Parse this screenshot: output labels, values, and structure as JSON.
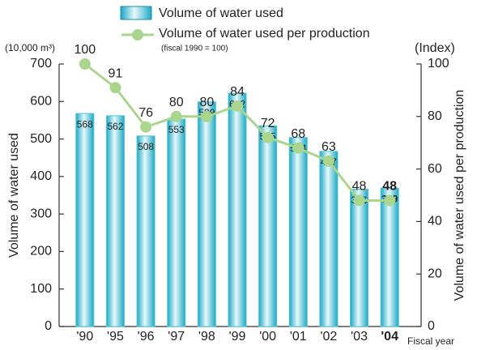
{
  "chart_data": {
    "type": "bar",
    "categories": [
      "'90",
      "'95",
      "'96",
      "'97",
      "'98",
      "'99",
      "'00",
      "'01",
      "'02",
      "'03",
      "'04"
    ],
    "series": [
      {
        "name": "Volume of water used",
        "type": "bar",
        "color": "#4cc3d9",
        "values": [
          568,
          562,
          508,
          553,
          599,
          622,
          535,
          504,
          467,
          366,
          369
        ]
      },
      {
        "name": "Volume of water used per production",
        "type": "line",
        "axis": "y2",
        "color": "#a9d68c",
        "values": [
          100,
          91,
          76,
          80,
          80,
          84,
          72,
          68,
          63,
          48,
          48
        ]
      }
    ],
    "annotation": "(fiscal 1990 = 100)",
    "ylabel": "Volume of water used",
    "yunit": "(10,000 m³)",
    "y2label": "Volume of water used per production",
    "y2unit": "(Index)",
    "xlabel": "Fiscal year",
    "ylim": [
      0,
      700
    ],
    "yticks": [
      0,
      100,
      200,
      300,
      400,
      500,
      600,
      700
    ],
    "y2lim": [
      0,
      100
    ],
    "y2ticks": [
      0,
      20,
      40,
      60,
      80,
      100
    ]
  }
}
